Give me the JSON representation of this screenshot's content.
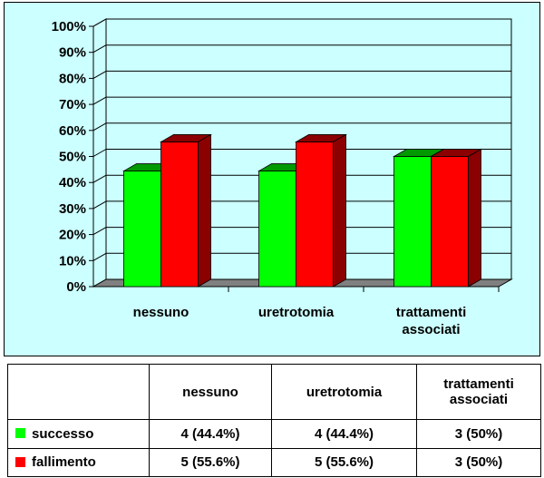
{
  "chart_data": {
    "type": "bar",
    "categories": [
      "nessuno",
      "uretrotomia",
      "trattamenti associati"
    ],
    "category_label_lines": [
      [
        "nessuno"
      ],
      [
        "uretrotomia"
      ],
      [
        "trattamenti",
        "associati"
      ]
    ],
    "series": [
      {
        "name": "successo",
        "values": [
          44.4,
          44.4,
          50
        ],
        "color": "#00ff00",
        "dark": "#009900"
      },
      {
        "name": "fallimento",
        "values": [
          55.6,
          55.6,
          50
        ],
        "color": "#ff0000",
        "dark": "#8b0000"
      }
    ],
    "ylim": [
      0,
      100
    ],
    "yticks": [
      "0%",
      "10%",
      "20%",
      "30%",
      "40%",
      "50%",
      "60%",
      "70%",
      "80%",
      "90%",
      "100%"
    ],
    "grid": true,
    "background": "#ccffff",
    "floor_color": "#808080"
  },
  "table": {
    "headers": [
      "",
      "nessuno",
      "uretrotomia",
      "trattamenti associati"
    ],
    "rows": [
      {
        "label": "successo",
        "color": "#00ff00",
        "cells": [
          "4 (44.4%)",
          "4 (44.4%)",
          "3 (50%)"
        ]
      },
      {
        "label": "fallimento",
        "color": "#ff0000",
        "cells": [
          "5 (55.6%)",
          "5 (55.6%)",
          "3 (50%)"
        ]
      }
    ]
  }
}
